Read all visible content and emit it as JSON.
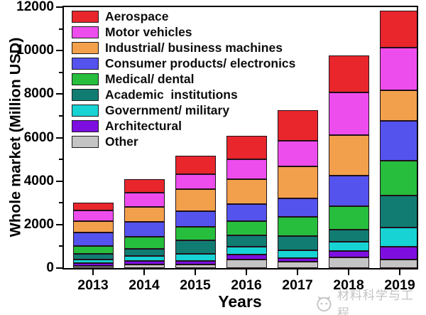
{
  "watermark": {
    "text": "材料科学与工程"
  },
  "chart_data": {
    "type": "bar",
    "stacked": true,
    "title": "",
    "xlabel": "Years",
    "ylabel": "Whole market (Million USD)",
    "ylim": [
      0,
      12000
    ],
    "yticks": [
      0,
      2000,
      4000,
      6000,
      8000,
      10000,
      12000
    ],
    "minor_ytick_step": 1000,
    "grid": false,
    "legend_position": "top-left-inside",
    "categories": [
      "2013",
      "2014",
      "2015",
      "2016",
      "2017",
      "2018",
      "2019"
    ],
    "series": [
      {
        "name": "Aerospace",
        "color": "#e8262c",
        "values": [
          380,
          625,
          875,
          1080,
          1385,
          1695,
          1700
        ]
      },
      {
        "name": "Motor vehicles",
        "color": "#ee4dee",
        "values": [
          490,
          660,
          660,
          900,
          1185,
          1955,
          1940
        ]
      },
      {
        "name": "Industrial/ business machines",
        "color": "#f2a04b",
        "values": [
          525,
          690,
          1020,
          1130,
          1470,
          1885,
          1425
        ]
      },
      {
        "name": "Consumer products/ electronics",
        "color": "#5453ee",
        "values": [
          625,
          680,
          715,
          790,
          855,
          1390,
          1810
        ]
      },
      {
        "name": "Medical/ dental",
        "color": "#26be3c",
        "values": [
          350,
          550,
          625,
          660,
          880,
          1095,
          1610
        ]
      },
      {
        "name": "Academic  institutions",
        "color": "#117c72",
        "values": [
          250,
          330,
          635,
          525,
          650,
          550,
          1495
        ]
      },
      {
        "name": "Government/ military",
        "color": "#17d3d3",
        "values": [
          165,
          240,
          330,
          360,
          380,
          405,
          875
        ]
      },
      {
        "name": "Architectural",
        "color": "#7c0fe0",
        "values": [
          130,
          140,
          155,
          220,
          165,
          305,
          590
        ]
      },
      {
        "name": "Other",
        "color": "#c4c4c4",
        "values": [
          105,
          175,
          165,
          405,
          285,
          495,
          385
        ]
      }
    ]
  }
}
